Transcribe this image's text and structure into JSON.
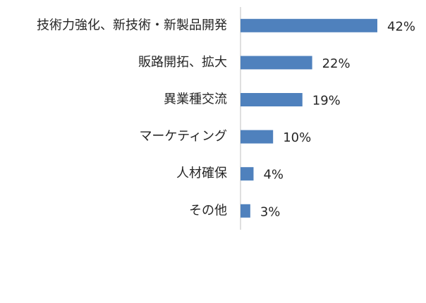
{
  "chart_data": {
    "type": "barh",
    "categories": [
      "技術力強化、新技術・新製品開発",
      "販路開拓、拡大",
      "異業種交流",
      "マーケティング",
      "人材確保",
      "その他"
    ],
    "values": [
      42,
      22,
      19,
      10,
      4,
      3
    ],
    "value_labels": [
      "42%",
      "22%",
      "19%",
      "10%",
      "4%",
      "3%"
    ],
    "color": "#4f81bd"
  }
}
